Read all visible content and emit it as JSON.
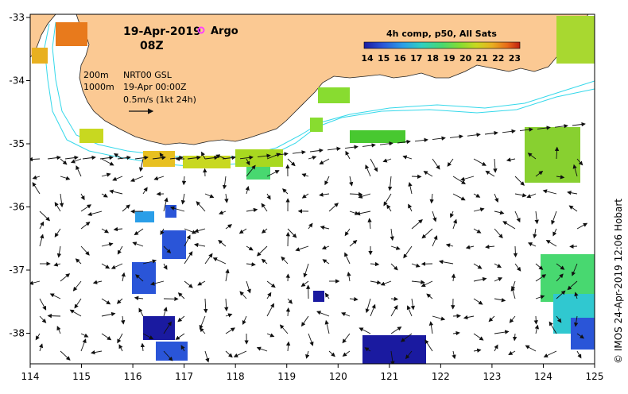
{
  "map": {
    "date": "19-Apr-2019",
    "time": "08Z",
    "argo_label": "Argo",
    "isobath_200": "200m",
    "isobath_1000": "1000m",
    "product": "NRT00 GSL",
    "product_time": "19-Apr 00:00Z",
    "scale_label": "0.5m/s (1kt 24h)",
    "credit": "© IMOS 24-Apr-2019 12:06 Hobart"
  },
  "axes": {
    "x_ticks": [
      "114",
      "115",
      "116",
      "117",
      "118",
      "119",
      "120",
      "121",
      "122",
      "123",
      "124",
      "125"
    ],
    "y_ticks": [
      "-33",
      "-34",
      "-35",
      "-36",
      "-37",
      "-38"
    ]
  },
  "colorbar": {
    "title": "4h comp, p50, All Sats",
    "ticks": [
      "14",
      "15",
      "16",
      "17",
      "18",
      "19",
      "20",
      "21",
      "22",
      "23"
    ],
    "colors": [
      "#1a1aa0",
      "#2a55d8",
      "#2a9ee8",
      "#30d0c0",
      "#48d870",
      "#88dc30",
      "#c8d820",
      "#e8b020",
      "#e86a18",
      "#c02010"
    ]
  },
  "colors": {
    "land": "#fbc993",
    "isobath": "#34d8ea",
    "argo": "#ff40ff",
    "arrow": "#111111"
  }
}
